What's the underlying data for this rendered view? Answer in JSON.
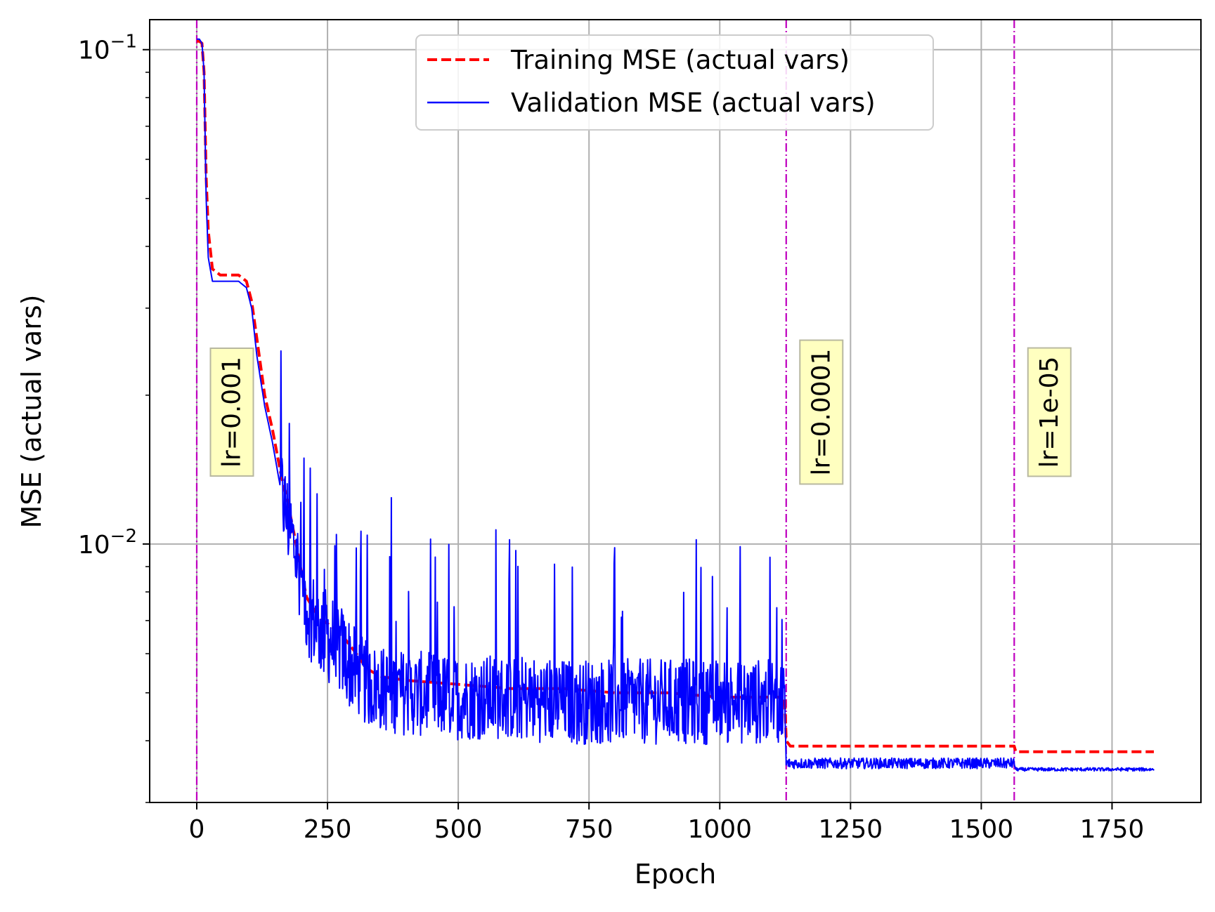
{
  "chart_data": {
    "type": "line",
    "title": "",
    "xlabel": "Epoch",
    "ylabel": "MSE (actual vars)",
    "xlim": [
      -90,
      1920
    ],
    "ylim": [
      0.003,
      0.115
    ],
    "yscale": "log",
    "grid": true,
    "legend": {
      "placement": "top-center"
    },
    "x_ticks": [
      0,
      250,
      500,
      750,
      1000,
      1250,
      1500,
      1750
    ],
    "x_tick_labels": [
      "0",
      "250",
      "500",
      "750",
      "1000",
      "1250",
      "1500",
      "1750"
    ],
    "y_major_ticks": [
      {
        "value": 0.1,
        "base": "10",
        "exp": "−1"
      },
      {
        "value": 0.01,
        "base": "10",
        "exp": "−2"
      }
    ],
    "y_minor_ticks": [
      0.003,
      0.004,
      0.005,
      0.006,
      0.007,
      0.008,
      0.009,
      0.02,
      0.03,
      0.04,
      0.05,
      0.06,
      0.07,
      0.08,
      0.09
    ],
    "series": [
      {
        "name": "Training MSE (actual vars)",
        "color": "#ff0000",
        "style": "dashed",
        "x": [
          0,
          5,
          10,
          14,
          18,
          22,
          30,
          45,
          60,
          80,
          95,
          105,
          115,
          130,
          145,
          160,
          175,
          190,
          200,
          210,
          230,
          250,
          275,
          300,
          325,
          350,
          400,
          500,
          600,
          700,
          800,
          900,
          1000,
          1050,
          1100,
          1124,
          1127,
          1135,
          1200,
          1300,
          1400,
          1500,
          1563,
          1566,
          1570,
          1650,
          1750,
          1830
        ],
        "y": [
          0.104,
          0.104,
          0.103,
          0.09,
          0.055,
          0.043,
          0.036,
          0.035,
          0.035,
          0.035,
          0.034,
          0.031,
          0.026,
          0.02,
          0.017,
          0.014,
          0.012,
          0.01,
          0.0088,
          0.0078,
          0.0072,
          0.0069,
          0.0066,
          0.0061,
          0.0056,
          0.0054,
          0.0053,
          0.0052,
          0.0051,
          0.0051,
          0.005,
          0.005,
          0.0049,
          0.0049,
          0.0049,
          0.0049,
          0.004,
          0.0039,
          0.0039,
          0.0039,
          0.0039,
          0.0039,
          0.0039,
          0.0038,
          0.0038,
          0.0038,
          0.0038,
          0.0038
        ]
      },
      {
        "name": "Validation MSE (actual vars)",
        "color": "#0000ff",
        "style": "solid",
        "noisy": true,
        "x": [
          0,
          5,
          10,
          14,
          18,
          22,
          30,
          45,
          60,
          80,
          95,
          105,
          115,
          130,
          145,
          160,
          175,
          190,
          200,
          210,
          230,
          250,
          275,
          300,
          325,
          350,
          400,
          500,
          600,
          700,
          800,
          900,
          1000,
          1050,
          1100,
          1124,
          1127,
          1135,
          1200,
          1300,
          1400,
          1500,
          1563,
          1566,
          1570,
          1650,
          1750,
          1830
        ],
        "y": [
          0.105,
          0.105,
          0.103,
          0.09,
          0.05,
          0.038,
          0.034,
          0.034,
          0.034,
          0.034,
          0.033,
          0.03,
          0.024,
          0.019,
          0.016,
          0.013,
          0.011,
          0.0095,
          0.0085,
          0.0075,
          0.0068,
          0.0065,
          0.0061,
          0.0056,
          0.0052,
          0.0051,
          0.005,
          0.0049,
          0.0049,
          0.0048,
          0.0048,
          0.0048,
          0.0048,
          0.0048,
          0.0048,
          0.0048,
          0.0036,
          0.0036,
          0.0036,
          0.0036,
          0.0036,
          0.0036,
          0.0036,
          0.0035,
          0.0035,
          0.0035,
          0.0035,
          0.0035
        ]
      }
    ],
    "annotations": [
      {
        "text": "lr=0.001",
        "x": 0,
        "color": "#bf00bf"
      },
      {
        "text": "lr=0.0001",
        "x": 1127,
        "color": "#bf00bf"
      },
      {
        "text": "lr=1e-05",
        "x": 1563,
        "color": "#bf00bf"
      }
    ],
    "annotation_box_color": "#ffffc0",
    "grid_color": "#b0b0b0"
  }
}
